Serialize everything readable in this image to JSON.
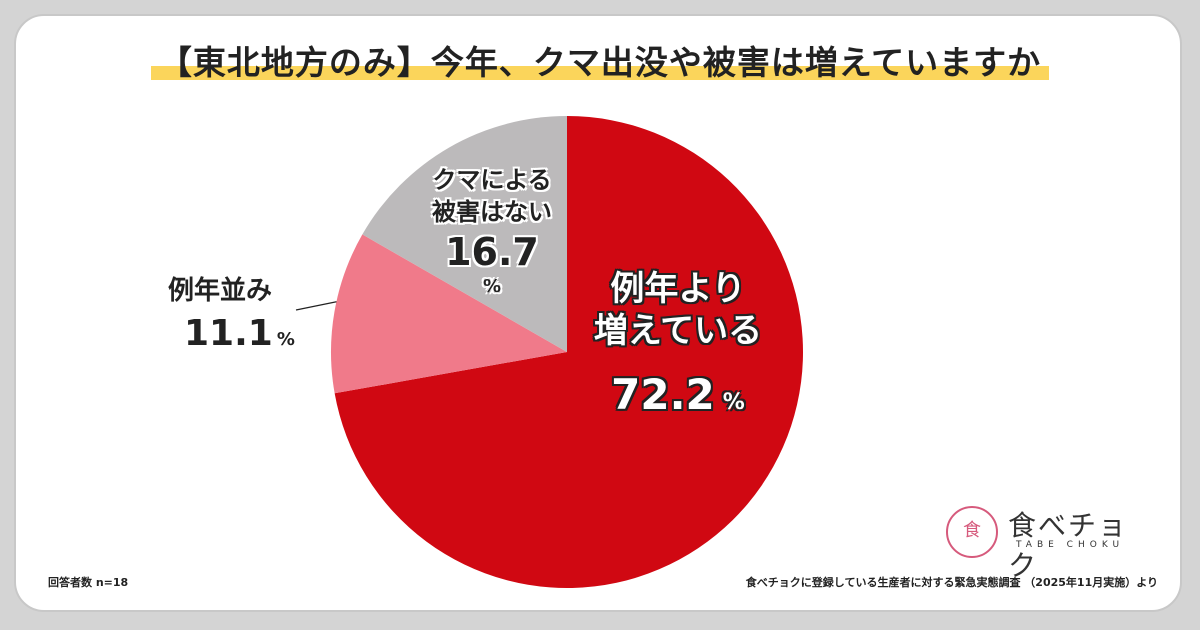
{
  "title": "【東北地方のみ】今年、クマ出没や被害は増えていますか",
  "chart_data": {
    "type": "pie",
    "start_angle_deg": 0,
    "direction": "clockwise",
    "slices": [
      {
        "label_line1": "例年より",
        "label_line2": "増えている",
        "value": 72.2,
        "unit": "%",
        "color": "#d00812"
      },
      {
        "label_line1": "例年並み",
        "label_line2": "",
        "value": 11.1,
        "unit": "%",
        "color": "#f07a8a"
      },
      {
        "label_line1": "クマによる",
        "label_line2": "被害はない",
        "value": 16.7,
        "unit": "%",
        "color": "#bcbabb"
      }
    ]
  },
  "labels": {
    "increase_line1": "例年より",
    "increase_line2": "増えている",
    "increase_value": "72.2",
    "increase_unit": "%",
    "average_label": "例年並み",
    "average_value": "11.1",
    "average_unit": "%",
    "none_line1": "クマによる",
    "none_line2": "被害はない",
    "none_value": "16.7",
    "none_unit": "%"
  },
  "footer": {
    "respondents": "回答者数 n=18",
    "source": "食べチョクに登録している生産者に対する緊急実態調査 （2025年11月実施）より"
  },
  "logo": {
    "mark": "食",
    "text": "食べチョク",
    "sub": "TABE CHOKU"
  }
}
